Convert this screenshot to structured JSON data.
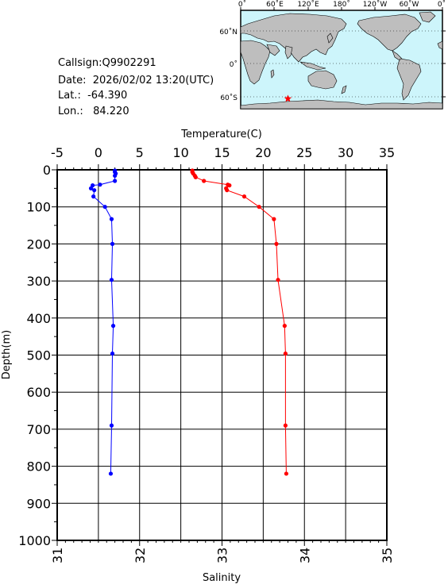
{
  "station": {
    "callsign": "Callsign:Q9902291",
    "date": "Date:  2026/02/02 13:20(UTC)",
    "lat": "Lat.:  -64.390",
    "lon": "Lon.:   84.220"
  },
  "map": {
    "lon_labels": [
      "0˚",
      "60˚E",
      "120˚E",
      "180˚",
      "120˚W",
      "60˚W",
      "0˚"
    ],
    "lat_labels": [
      "60˚N",
      "0˚",
      "60˚S"
    ],
    "marker_lat": -64.39,
    "marker_lon": 84.22,
    "ocean_color": "#cdf5fb",
    "land_color": "#bebebe",
    "marker_color": "#ff0000"
  },
  "chart_data": {
    "type": "line",
    "ylabel": "Depth(m)",
    "ylim": [
      1000,
      0
    ],
    "y_ticks": [
      "0",
      "100",
      "200",
      "300",
      "400",
      "500",
      "600",
      "700",
      "800",
      "900",
      "1000"
    ],
    "top_axis": {
      "label": "Temperature(C)",
      "range": [
        -5,
        35
      ],
      "ticks": [
        "-5",
        "0",
        "5",
        "10",
        "15",
        "20",
        "25",
        "30",
        "35"
      ]
    },
    "bottom_axis": {
      "label": "Salinity",
      "range": [
        31,
        35
      ],
      "ticks": [
        "31",
        "32",
        "33",
        "34",
        "35"
      ]
    },
    "grid": true,
    "series": [
      {
        "axis": "temperature",
        "color": "#0000ff",
        "points": [
          [
            2.0,
            2
          ],
          [
            2.0,
            6
          ],
          [
            2.1,
            10
          ],
          [
            2.0,
            16
          ],
          [
            2.0,
            30
          ],
          [
            0.2,
            40
          ],
          [
            -0.7,
            42
          ],
          [
            -0.9,
            50
          ],
          [
            -0.5,
            55
          ],
          [
            -0.6,
            72
          ],
          [
            0.8,
            100
          ],
          [
            1.6,
            133
          ],
          [
            1.7,
            200
          ],
          [
            1.6,
            297
          ],
          [
            1.8,
            421
          ],
          [
            1.7,
            496
          ],
          [
            1.6,
            690
          ],
          [
            1.5,
            820
          ]
        ]
      },
      {
        "axis": "salinity",
        "color": "#ff0000",
        "points": [
          [
            32.64,
            2
          ],
          [
            32.64,
            6
          ],
          [
            32.65,
            10
          ],
          [
            32.67,
            16
          ],
          [
            32.68,
            20
          ],
          [
            32.78,
            30
          ],
          [
            33.07,
            40
          ],
          [
            33.09,
            42
          ],
          [
            33.05,
            50
          ],
          [
            33.06,
            55
          ],
          [
            33.27,
            72
          ],
          [
            33.45,
            100
          ],
          [
            33.63,
            133
          ],
          [
            33.66,
            200
          ],
          [
            33.68,
            297
          ],
          [
            33.76,
            421
          ],
          [
            33.77,
            496
          ],
          [
            33.77,
            690
          ],
          [
            33.78,
            820
          ]
        ]
      }
    ]
  }
}
